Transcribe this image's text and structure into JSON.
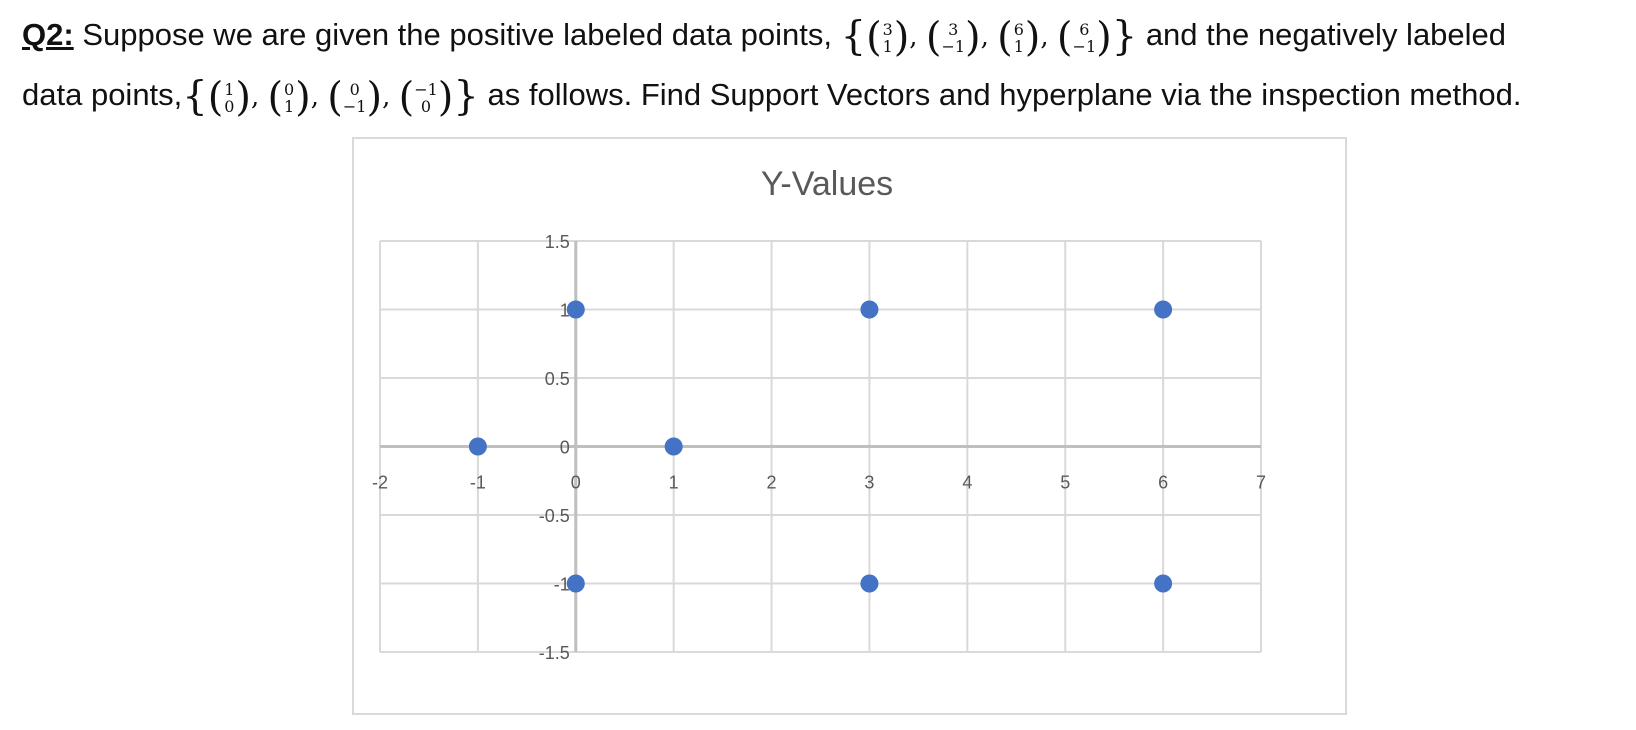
{
  "question": {
    "label": "Q2:",
    "line1_pre": "Suppose we are given the positive labeled data points,",
    "line1_post": "and the negatively labeled",
    "line2_pre": "data points,",
    "line2_post": "as follows. Find Support Vectors and hyperplane via the inspection method.",
    "positive_points": [
      [
        "3",
        "1"
      ],
      [
        "3",
        "−1"
      ],
      [
        "6",
        "1"
      ],
      [
        "6",
        "−1"
      ]
    ],
    "negative_points": [
      [
        "1",
        "0"
      ],
      [
        "0",
        "1"
      ],
      [
        "0",
        "−1"
      ],
      [
        "−1",
        "0"
      ]
    ]
  },
  "chart_data": {
    "type": "scatter",
    "title": "Y-Values",
    "xlim": [
      -2,
      7
    ],
    "ylim": [
      -1.5,
      1.5
    ],
    "x_ticks": [
      -2,
      -1,
      0,
      1,
      2,
      3,
      4,
      5,
      6,
      7
    ],
    "y_ticks": [
      -1.5,
      -1,
      -0.5,
      0,
      0.5,
      1,
      1.5
    ],
    "x_tick_labels": [
      "-2",
      "-1",
      "0",
      "1",
      "2",
      "3",
      "4",
      "5",
      "6",
      "7"
    ],
    "y_tick_labels": [
      "-1.5",
      "-1",
      "-0.5",
      "0",
      "0.5",
      "1",
      "1.5"
    ],
    "grid": true,
    "marker_color": "#4472C4",
    "series": [
      {
        "x": [
          3,
          3,
          6,
          6,
          1,
          0,
          0,
          -1
        ],
        "y": [
          1,
          -1,
          1,
          -1,
          0,
          1,
          -1,
          0
        ]
      }
    ]
  }
}
